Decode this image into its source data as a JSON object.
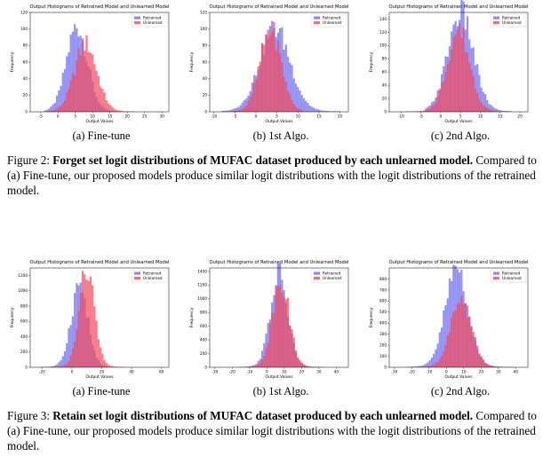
{
  "figures": [
    {
      "label": "Figure 2:",
      "bold": "Forget set logit distributions of MUFAC dataset produced by each unlearned model.",
      "text": "Compared to (a) Fine-tune, our proposed models produce similar logit distributions with the logit distributions of the retrained model."
    },
    {
      "label": "Figure 3:",
      "bold": "Retain set logit distributions of MUFAC dataset produced by each unlearned model.",
      "text": "Compared to (a) Fine-tune, our proposed models produce similar logit distributions with the logit distributions of the retrained model."
    }
  ],
  "subcaptions": [
    "(a) Fine-tune",
    "(b) 1st Algo.",
    "(c) 2nd Algo.",
    "(a) Fine-tune",
    "(b) 1st Algo.",
    "(c) 2nd Algo."
  ],
  "colors": {
    "retrained": "#6b6bf5",
    "unlearned": "#f24a5a"
  },
  "chart_data": [
    {
      "type": "bar",
      "title": "Output Histograms of Retrained Model and Unlearned Model",
      "xlabel": "Output Values",
      "ylabel": "Frequency",
      "xlim": [
        -8,
        32
      ],
      "ylim": [
        0,
        120
      ],
      "xticks": [
        -5,
        0,
        5,
        10,
        15,
        20,
        25,
        30
      ],
      "yticks": [
        0,
        20,
        40,
        60,
        80,
        100,
        120
      ],
      "legend": "top-right",
      "series": [
        {
          "name": "Retrained",
          "center": 5.5,
          "spread": 3.0,
          "peak": 100,
          "range": [
            -4,
            17
          ]
        },
        {
          "name": "Unlearned",
          "center": 8.0,
          "spread": 3.2,
          "peak": 80,
          "range": [
            -3,
            22
          ]
        }
      ]
    },
    {
      "type": "bar",
      "title": "Output Histograms of Retrained Model and Unlearned Model",
      "xlabel": "Output Values",
      "ylabel": "Frequency",
      "xlim": [
        -11,
        22
      ],
      "ylim": [
        0,
        120
      ],
      "xticks": [
        -10,
        -5,
        0,
        5,
        10,
        15,
        20
      ],
      "yticks": [
        0,
        20,
        40,
        60,
        80,
        100,
        120
      ],
      "legend": "top-right",
      "series": [
        {
          "name": "Retrained",
          "center": 4.5,
          "spread": 3.6,
          "peak": 98,
          "range": [
            -8,
            20
          ]
        },
        {
          "name": "Unlearned",
          "center": 3.5,
          "spread": 2.5,
          "peak": 97,
          "range": [
            -8,
            11
          ]
        }
      ]
    },
    {
      "type": "bar",
      "title": "Output Histograms of Retrained Model and Unlearned Model",
      "xlabel": "Output Values",
      "ylabel": "Frequency",
      "xlim": [
        -13,
        22
      ],
      "ylim": [
        0,
        150
      ],
      "xticks": [
        -10,
        -5,
        0,
        5,
        10,
        15,
        20
      ],
      "yticks": [
        0,
        20,
        40,
        60,
        80,
        100,
        120,
        140
      ],
      "legend": "top-right",
      "series": [
        {
          "name": "Retrained",
          "center": 5.0,
          "spread": 3.2,
          "peak": 145,
          "range": [
            -4,
            18
          ]
        },
        {
          "name": "Unlearned",
          "center": 4.5,
          "spread": 2.8,
          "peak": 120,
          "range": [
            -11,
            14
          ]
        }
      ]
    },
    {
      "type": "bar",
      "title": "Output Histograms of Retrained Model and Unlearned Model",
      "xlabel": "Output Values",
      "ylabel": "Frequency",
      "xlim": [
        -28,
        65
      ],
      "ylim": [
        0,
        1300
      ],
      "xticks": [
        -20,
        0,
        20,
        40,
        60
      ],
      "yticks": [
        0,
        200,
        400,
        600,
        800,
        1000,
        1200
      ],
      "legend": "top-right",
      "series": [
        {
          "name": "Retrained",
          "center": 5.0,
          "spread": 5.5,
          "peak": 1050,
          "range": [
            -22,
            30
          ]
        },
        {
          "name": "Unlearned",
          "center": 10.0,
          "spread": 5.0,
          "peak": 1250,
          "range": [
            -15,
            40
          ]
        }
      ]
    },
    {
      "type": "bar",
      "title": "Output Histograms of Retrained Model and Unlearned Model",
      "xlabel": "Output Values",
      "ylabel": "Frequency",
      "xlim": [
        -33,
        47
      ],
      "ylim": [
        0,
        1450
      ],
      "xticks": [
        -30,
        -20,
        -10,
        0,
        10,
        20,
        30,
        40
      ],
      "yticks": [
        0,
        200,
        400,
        600,
        800,
        1000,
        1200,
        1400
      ],
      "legend": "top-right",
      "series": [
        {
          "name": "Retrained",
          "center": 7.0,
          "spread": 5.0,
          "peak": 1300,
          "range": [
            -28,
            40
          ]
        },
        {
          "name": "Unlearned",
          "center": 8.0,
          "spread": 4.8,
          "peak": 1250,
          "range": [
            -28,
            40
          ]
        }
      ]
    },
    {
      "type": "bar",
      "title": "Output Histograms of Retrained Model and Unlearned Model",
      "xlabel": "Output Values",
      "ylabel": "Frequency",
      "xlim": [
        -33,
        47
      ],
      "ylim": [
        0,
        900
      ],
      "xticks": [
        -30,
        -20,
        -10,
        0,
        10,
        20,
        30,
        40
      ],
      "yticks": [
        0,
        100,
        200,
        300,
        400,
        500,
        600,
        700,
        800
      ],
      "legend": "top-right",
      "series": [
        {
          "name": "Retrained",
          "center": 6.0,
          "spread": 6.5,
          "peak": 870,
          "range": [
            -30,
            42
          ]
        },
        {
          "name": "Unlearned",
          "center": 8.5,
          "spread": 6.0,
          "peak": 590,
          "range": [
            -28,
            42
          ]
        }
      ]
    }
  ]
}
